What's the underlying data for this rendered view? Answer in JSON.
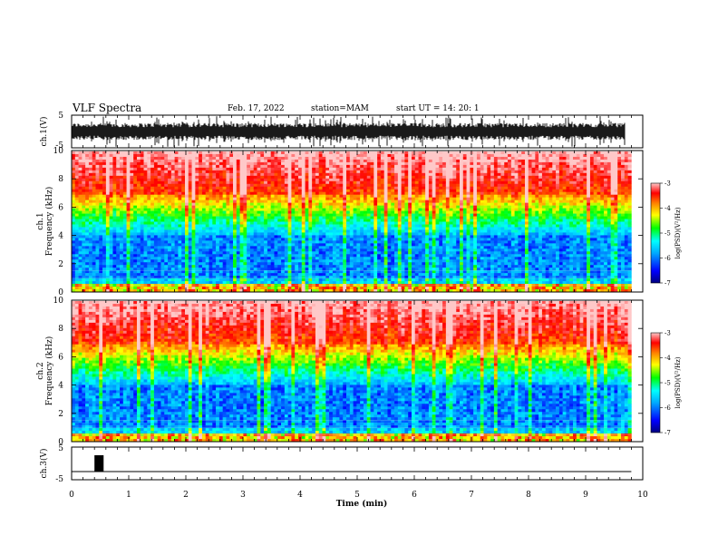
{
  "header": {
    "title": "VLF Spectra",
    "date": "Feb. 17, 2022",
    "station": "station=MAM",
    "start": "start UT =  14: 20: 1"
  },
  "chart_data": [
    {
      "type": "line",
      "panel": "ch1-waveform",
      "ylabel": "ch.1(V)",
      "ylim": [
        -5,
        5
      ],
      "yticks": [
        "5",
        "-5"
      ],
      "xlim": [
        0,
        10
      ],
      "description_values": {
        "amplitude_range": [
          -5,
          5
        ]
      }
    },
    {
      "type": "heatmap",
      "panel": "ch1-spectrogram",
      "ylabel_top": "ch.1",
      "ylabel": "Frequency (kHz)",
      "ylim": [
        0,
        10
      ],
      "yticks": [
        "0",
        "2",
        "4",
        "6",
        "8",
        "10"
      ],
      "xlim": [
        0,
        9.8
      ],
      "colorbar": {
        "label": "log(PSD)(V²/Hz)",
        "range": [
          -7,
          -3
        ],
        "ticks": [
          "-3",
          "-4",
          "-5",
          "-6",
          "-7"
        ]
      }
    },
    {
      "type": "heatmap",
      "panel": "ch2-spectrogram",
      "ylabel_top": "ch.2",
      "ylabel": "Frequency (kHz)",
      "ylim": [
        0,
        10
      ],
      "yticks": [
        "0",
        "2",
        "4",
        "6",
        "8",
        "10"
      ],
      "xlim": [
        0,
        9.8
      ],
      "colorbar": {
        "label": "log(PSD)(V²/Hz)",
        "range": [
          -7,
          -3
        ],
        "ticks": [
          "-3",
          "-4",
          "-5",
          "-6",
          "-7"
        ]
      }
    },
    {
      "type": "line",
      "panel": "ch3-waveform",
      "ylabel": "ch.3(V)",
      "ylim": [
        -5,
        5
      ],
      "yticks": [
        "5",
        "-5"
      ],
      "xlim": [
        0,
        10
      ],
      "pulse": {
        "x_start": 0.4,
        "x_end": 0.56,
        "value_high": 2.5,
        "value_low": -2.5
      },
      "baseline": -2.5
    }
  ],
  "xaxis": {
    "label": "Time (min)",
    "ticks": [
      "0",
      "1",
      "2",
      "3",
      "4",
      "5",
      "6",
      "7",
      "8",
      "9",
      "10"
    ],
    "range": [
      0,
      10
    ]
  },
  "colors": {
    "scale": [
      "#000080",
      "#0000ff",
      "#00aaff",
      "#00ffff",
      "#00ff00",
      "#ffff00",
      "#ff8000",
      "#ff0000",
      "#ffc0c0"
    ]
  }
}
